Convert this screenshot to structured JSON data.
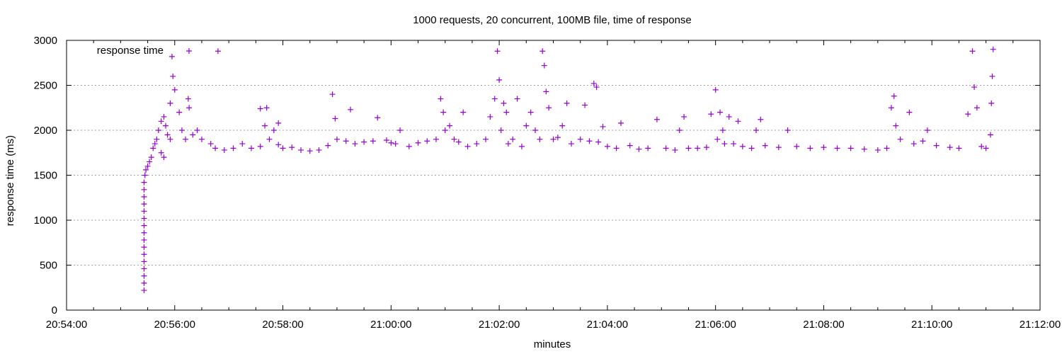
{
  "chart_data": {
    "type": "scatter",
    "title": "1000 requests, 20 concurrent, 100MB file, time of response",
    "xlabel": "minutes",
    "ylabel": "response time (ms)",
    "x_is_time": true,
    "xlim": [
      "20:54:00",
      "21:12:00"
    ],
    "ylim": [
      0,
      3000
    ],
    "x_ticks": [
      "20:54:00",
      "20:56:00",
      "20:58:00",
      "21:00:00",
      "21:02:00",
      "21:04:00",
      "21:06:00",
      "21:08:00",
      "21:10:00",
      "21:12:00"
    ],
    "y_ticks": [
      0,
      500,
      1000,
      1500,
      2000,
      2500,
      3000
    ],
    "y_grid": true,
    "legend_position": "top-left",
    "marker": "plus",
    "series": [
      {
        "name": "response time",
        "color": "#9400d3",
        "points": [
          [
            "20:55:26",
            220
          ],
          [
            "20:55:26",
            300
          ],
          [
            "20:55:26",
            380
          ],
          [
            "20:55:26",
            460
          ],
          [
            "20:55:26",
            540
          ],
          [
            "20:55:26",
            620
          ],
          [
            "20:55:26",
            700
          ],
          [
            "20:55:26",
            780
          ],
          [
            "20:55:26",
            860
          ],
          [
            "20:55:26",
            940
          ],
          [
            "20:55:26",
            1020
          ],
          [
            "20:55:26",
            1100
          ],
          [
            "20:55:26",
            1180
          ],
          [
            "20:55:26",
            1260
          ],
          [
            "20:55:26",
            1340
          ],
          [
            "20:55:26",
            1420
          ],
          [
            "20:55:27",
            1500
          ],
          [
            "20:55:28",
            1560
          ],
          [
            "20:55:30",
            1600
          ],
          [
            "20:55:32",
            1650
          ],
          [
            "20:55:34",
            1700
          ],
          [
            "20:55:36",
            1800
          ],
          [
            "20:55:38",
            1850
          ],
          [
            "20:55:40",
            1900
          ],
          [
            "20:55:42",
            2000
          ],
          [
            "20:55:45",
            2100
          ],
          [
            "20:55:48",
            2150
          ],
          [
            "20:55:50",
            2050
          ],
          [
            "20:55:52",
            1950
          ],
          [
            "20:55:55",
            1900
          ],
          [
            "20:55:45",
            1750
          ],
          [
            "20:55:48",
            1700
          ],
          [
            "20:55:55",
            2300
          ],
          [
            "20:55:58",
            2600
          ],
          [
            "20:56:00",
            2450
          ],
          [
            "20:55:57",
            2820
          ],
          [
            "20:56:05",
            2200
          ],
          [
            "20:56:08",
            2000
          ],
          [
            "20:56:12",
            1900
          ],
          [
            "20:56:15",
            2350
          ],
          [
            "20:56:16",
            2250
          ],
          [
            "20:56:20",
            1950
          ],
          [
            "20:56:25",
            2000
          ],
          [
            "20:56:30",
            1900
          ],
          [
            "20:56:40",
            1850
          ],
          [
            "20:56:45",
            1800
          ],
          [
            "20:56:48",
            2880
          ],
          [
            "20:56:55",
            1780
          ],
          [
            "20:57:05",
            1800
          ],
          [
            "20:57:15",
            1850
          ],
          [
            "20:57:25",
            1800
          ],
          [
            "20:57:35",
            1820
          ],
          [
            "20:57:45",
            1900
          ],
          [
            "20:57:55",
            1840
          ],
          [
            "20:58:00",
            1800
          ],
          [
            "20:58:10",
            1810
          ],
          [
            "20:57:35",
            2240
          ],
          [
            "20:57:40",
            2050
          ],
          [
            "20:57:42",
            2250
          ],
          [
            "20:57:50",
            2000
          ],
          [
            "20:57:55",
            2080
          ],
          [
            "20:58:20",
            1780
          ],
          [
            "20:58:30",
            1770
          ],
          [
            "20:58:40",
            1780
          ],
          [
            "20:58:50",
            1830
          ],
          [
            "20:58:55",
            2400
          ],
          [
            "20:58:58",
            2130
          ],
          [
            "20:59:00",
            1900
          ],
          [
            "20:59:10",
            1880
          ],
          [
            "20:59:20",
            1850
          ],
          [
            "20:59:15",
            2230
          ],
          [
            "20:59:30",
            1870
          ],
          [
            "20:59:40",
            1880
          ],
          [
            "20:59:45",
            2140
          ],
          [
            "20:59:55",
            1890
          ],
          [
            "21:00:00",
            1860
          ],
          [
            "21:00:05",
            1850
          ],
          [
            "21:00:10",
            2000
          ],
          [
            "21:00:20",
            1820
          ],
          [
            "21:00:30",
            1860
          ],
          [
            "21:00:40",
            1880
          ],
          [
            "21:00:50",
            1900
          ],
          [
            "21:00:55",
            2350
          ],
          [
            "21:00:58",
            2200
          ],
          [
            "21:01:00",
            2000
          ],
          [
            "21:01:05",
            2050
          ],
          [
            "21:01:10",
            1900
          ],
          [
            "21:01:15",
            1870
          ],
          [
            "21:01:20",
            2200
          ],
          [
            "21:01:25",
            1820
          ],
          [
            "21:01:35",
            1850
          ],
          [
            "21:01:45",
            1900
          ],
          [
            "21:01:50",
            2150
          ],
          [
            "21:01:55",
            2350
          ],
          [
            "21:01:58",
            2880
          ],
          [
            "21:02:00",
            2560
          ],
          [
            "21:02:02",
            2000
          ],
          [
            "21:02:05",
            2300
          ],
          [
            "21:02:08",
            2200
          ],
          [
            "21:02:10",
            1850
          ],
          [
            "21:02:15",
            1900
          ],
          [
            "21:02:20",
            2350
          ],
          [
            "21:02:25",
            1820
          ],
          [
            "21:02:30",
            2050
          ],
          [
            "21:02:35",
            2200
          ],
          [
            "21:02:40",
            2000
          ],
          [
            "21:02:45",
            1900
          ],
          [
            "21:02:48",
            2880
          ],
          [
            "21:02:50",
            2720
          ],
          [
            "21:02:52",
            2430
          ],
          [
            "21:02:55",
            2250
          ],
          [
            "21:03:00",
            1900
          ],
          [
            "21:03:05",
            1920
          ],
          [
            "21:03:10",
            2050
          ],
          [
            "21:03:15",
            2300
          ],
          [
            "21:03:20",
            1850
          ],
          [
            "21:03:30",
            1900
          ],
          [
            "21:03:35",
            2280
          ],
          [
            "21:03:40",
            1880
          ],
          [
            "21:03:45",
            2520
          ],
          [
            "21:03:48",
            2480
          ],
          [
            "21:03:50",
            1870
          ],
          [
            "21:03:55",
            2040
          ],
          [
            "21:04:00",
            1820
          ],
          [
            "21:04:10",
            1800
          ],
          [
            "21:04:15",
            2080
          ],
          [
            "21:04:25",
            1830
          ],
          [
            "21:04:35",
            1790
          ],
          [
            "21:04:45",
            1800
          ],
          [
            "21:04:55",
            2120
          ],
          [
            "21:05:05",
            1800
          ],
          [
            "21:05:15",
            1780
          ],
          [
            "21:05:20",
            2000
          ],
          [
            "21:05:25",
            2150
          ],
          [
            "21:05:30",
            1800
          ],
          [
            "21:05:40",
            1800
          ],
          [
            "21:05:50",
            1810
          ],
          [
            "21:05:55",
            2180
          ],
          [
            "21:06:00",
            2450
          ],
          [
            "21:06:02",
            1900
          ],
          [
            "21:06:05",
            2200
          ],
          [
            "21:06:08",
            2000
          ],
          [
            "21:06:10",
            1850
          ],
          [
            "21:06:15",
            2150
          ],
          [
            "21:06:20",
            1850
          ],
          [
            "21:06:25",
            2100
          ],
          [
            "21:06:30",
            1820
          ],
          [
            "21:06:40",
            1800
          ],
          [
            "21:06:45",
            2000
          ],
          [
            "21:06:50",
            2120
          ],
          [
            "21:06:55",
            1830
          ],
          [
            "21:07:10",
            1810
          ],
          [
            "21:07:20",
            2000
          ],
          [
            "21:07:30",
            1820
          ],
          [
            "21:07:45",
            1800
          ],
          [
            "21:08:00",
            1810
          ],
          [
            "21:08:15",
            1800
          ],
          [
            "21:08:30",
            1800
          ],
          [
            "21:08:45",
            1790
          ],
          [
            "21:09:00",
            1780
          ],
          [
            "21:09:10",
            1800
          ],
          [
            "21:09:15",
            2250
          ],
          [
            "21:09:18",
            2380
          ],
          [
            "21:09:20",
            2050
          ],
          [
            "21:09:25",
            1900
          ],
          [
            "21:09:35",
            2200
          ],
          [
            "21:09:40",
            1850
          ],
          [
            "21:09:50",
            1880
          ],
          [
            "21:09:55",
            2000
          ],
          [
            "21:10:05",
            1830
          ],
          [
            "21:10:20",
            1810
          ],
          [
            "21:10:30",
            1800
          ],
          [
            "21:10:40",
            2180
          ],
          [
            "21:10:45",
            2880
          ],
          [
            "21:10:47",
            2480
          ],
          [
            "21:10:50",
            2250
          ],
          [
            "21:10:55",
            1820
          ],
          [
            "21:11:00",
            1800
          ],
          [
            "21:11:05",
            1950
          ],
          [
            "21:11:06",
            2300
          ],
          [
            "21:11:07",
            2600
          ],
          [
            "21:11:08",
            2900
          ]
        ]
      }
    ]
  }
}
